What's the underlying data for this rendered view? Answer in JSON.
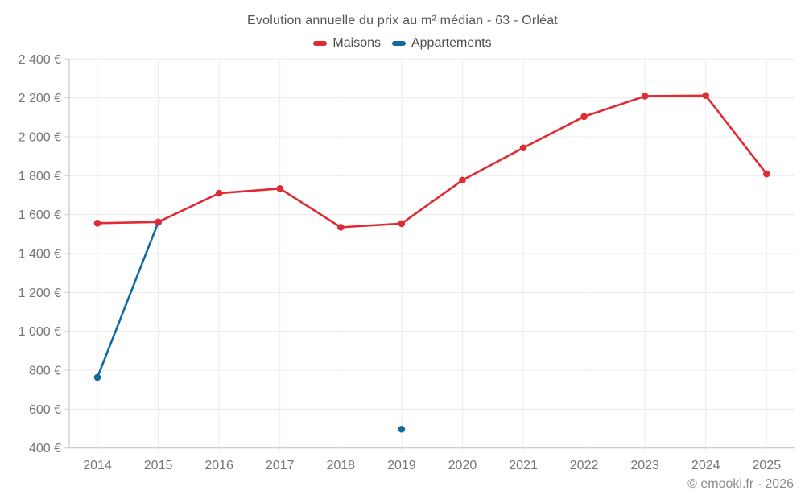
{
  "header": {
    "title": "Evolution annuelle du prix au m² médian - 63 - Orléat"
  },
  "footer": {
    "credit": "© emooki.fr - 2026"
  },
  "colors": {
    "maisons": "#e02b35",
    "appartements": "#15699e",
    "grid": "#ececec",
    "axis": "#c9c9c9",
    "tick_text": "#757575"
  },
  "chart_data": {
    "type": "line",
    "title": "Evolution annuelle du prix au m² médian - 63 - Orléat",
    "categories": [
      "2014",
      "2015",
      "2016",
      "2017",
      "2018",
      "2019",
      "2020",
      "2021",
      "2022",
      "2023",
      "2024",
      "2025"
    ],
    "series": [
      {
        "name": "Maisons",
        "color": "#e02b35",
        "values": [
          1556,
          1562,
          1710,
          1734,
          1535,
          1554,
          1777,
          1943,
          2104,
          2209,
          2212,
          1809
        ]
      },
      {
        "name": "Appartements",
        "color": "#15699e",
        "values": [
          763,
          1560,
          null,
          null,
          null,
          497,
          null,
          null,
          null,
          null,
          null,
          null
        ]
      }
    ],
    "xlabel": "",
    "ylabel": "",
    "ylim": [
      400,
      2400
    ],
    "y_tick_step": 200,
    "y_ticks": [
      400,
      600,
      800,
      1000,
      1200,
      1400,
      1600,
      1800,
      2000,
      2200,
      2400
    ],
    "y_tick_labels": [
      "400 €",
      "600 €",
      "800 €",
      "1 000 €",
      "1 200 €",
      "1 400 €",
      "1 600 €",
      "1 800 €",
      "2 000 €",
      "2 200 €",
      "2 400 €"
    ],
    "grid": true,
    "legend_position": "top"
  }
}
